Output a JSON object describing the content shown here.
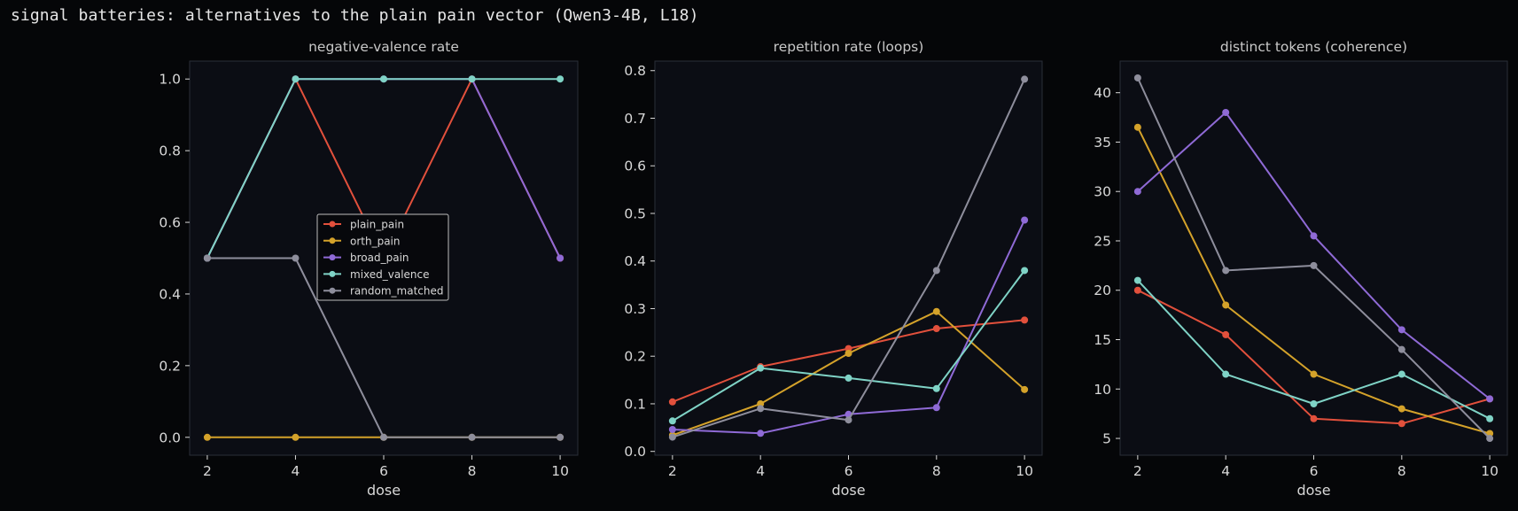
{
  "figure": {
    "title": "signal batteries: alternatives to the plain pain vector (Qwen3-4B, L18)"
  },
  "colors": {
    "background": "#050608",
    "plot_bg": "#0b0d14",
    "axes_edge": "#2a2e38",
    "text": "#d8d8d8",
    "title_text": "#c8c8c8"
  },
  "legend": {
    "location": "center (inside first panel)"
  },
  "series_styles": [
    {
      "name": "plain_pain",
      "color": "#e2503c"
    },
    {
      "name": "orth_pain",
      "color": "#d4a22a"
    },
    {
      "name": "broad_pain",
      "color": "#8f6ad6"
    },
    {
      "name": "mixed_valence",
      "color": "#7fd3c6"
    },
    {
      "name": "random_matched",
      "color": "#8e8e9c"
    }
  ],
  "chart_data": [
    {
      "type": "line",
      "title": "negative-valence rate",
      "xlabel": "dose",
      "ylabel": "",
      "x": [
        2,
        4,
        6,
        8,
        10
      ],
      "xlim": [
        1.6,
        10.4
      ],
      "ylim": [
        -0.05,
        1.05
      ],
      "xticks": [
        2,
        4,
        6,
        8,
        10
      ],
      "yticks": [
        0.0,
        0.2,
        0.4,
        0.6,
        0.8,
        1.0
      ],
      "ytick_labels": [
        "0.0",
        "0.2",
        "0.4",
        "0.6",
        "0.8",
        "1.0"
      ],
      "legend": true,
      "series": [
        {
          "name": "plain_pain",
          "values": [
            0.5,
            1.0,
            0.5,
            1.0,
            0.5
          ]
        },
        {
          "name": "orth_pain",
          "values": [
            0.0,
            0.0,
            0.0,
            0.0,
            0.0
          ]
        },
        {
          "name": "broad_pain",
          "values": [
            0.5,
            1.0,
            1.0,
            1.0,
            0.5
          ]
        },
        {
          "name": "mixed_valence",
          "values": [
            0.5,
            1.0,
            1.0,
            1.0,
            1.0
          ]
        },
        {
          "name": "random_matched",
          "values": [
            0.5,
            0.5,
            0.0,
            0.0,
            0.0
          ]
        }
      ]
    },
    {
      "type": "line",
      "title": "repetition rate (loops)",
      "xlabel": "dose",
      "ylabel": "",
      "x": [
        2,
        4,
        6,
        8,
        10
      ],
      "xlim": [
        1.6,
        10.4
      ],
      "ylim": [
        -0.008,
        0.82
      ],
      "xticks": [
        2,
        4,
        6,
        8,
        10
      ],
      "yticks": [
        0.0,
        0.1,
        0.2,
        0.3,
        0.4,
        0.5,
        0.6,
        0.7,
        0.8
      ],
      "ytick_labels": [
        "0.0",
        "0.1",
        "0.2",
        "0.3",
        "0.4",
        "0.5",
        "0.6",
        "0.7",
        "0.8"
      ],
      "legend": false,
      "series": [
        {
          "name": "plain_pain",
          "values": [
            0.104,
            0.178,
            0.216,
            0.258,
            0.276
          ]
        },
        {
          "name": "orth_pain",
          "values": [
            0.034,
            0.1,
            0.206,
            0.294,
            0.13
          ]
        },
        {
          "name": "broad_pain",
          "values": [
            0.046,
            0.038,
            0.078,
            0.092,
            0.486
          ]
        },
        {
          "name": "mixed_valence",
          "values": [
            0.064,
            0.175,
            0.154,
            0.132,
            0.38
          ]
        },
        {
          "name": "random_matched",
          "values": [
            0.03,
            0.09,
            0.066,
            0.38,
            0.782
          ]
        }
      ]
    },
    {
      "type": "line",
      "title": "distinct tokens (coherence)",
      "xlabel": "dose",
      "ylabel": "",
      "x": [
        2,
        4,
        6,
        8,
        10
      ],
      "xlim": [
        1.6,
        10.4
      ],
      "ylim": [
        3.3,
        43.2
      ],
      "xticks": [
        2,
        4,
        6,
        8,
        10
      ],
      "yticks": [
        5,
        10,
        15,
        20,
        25,
        30,
        35,
        40
      ],
      "ytick_labels": [
        "5",
        "10",
        "15",
        "20",
        "25",
        "30",
        "35",
        "40"
      ],
      "legend": false,
      "series": [
        {
          "name": "plain_pain",
          "values": [
            20.0,
            15.5,
            7.0,
            6.5,
            9.0
          ]
        },
        {
          "name": "orth_pain",
          "values": [
            36.5,
            18.5,
            11.5,
            8.0,
            5.5
          ]
        },
        {
          "name": "broad_pain",
          "values": [
            30.0,
            38.0,
            25.5,
            16.0,
            9.0
          ]
        },
        {
          "name": "mixed_valence",
          "values": [
            21.0,
            11.5,
            8.5,
            11.5,
            7.0
          ]
        },
        {
          "name": "random_matched",
          "values": [
            41.5,
            22.0,
            22.5,
            14.0,
            5.0
          ]
        }
      ]
    }
  ]
}
